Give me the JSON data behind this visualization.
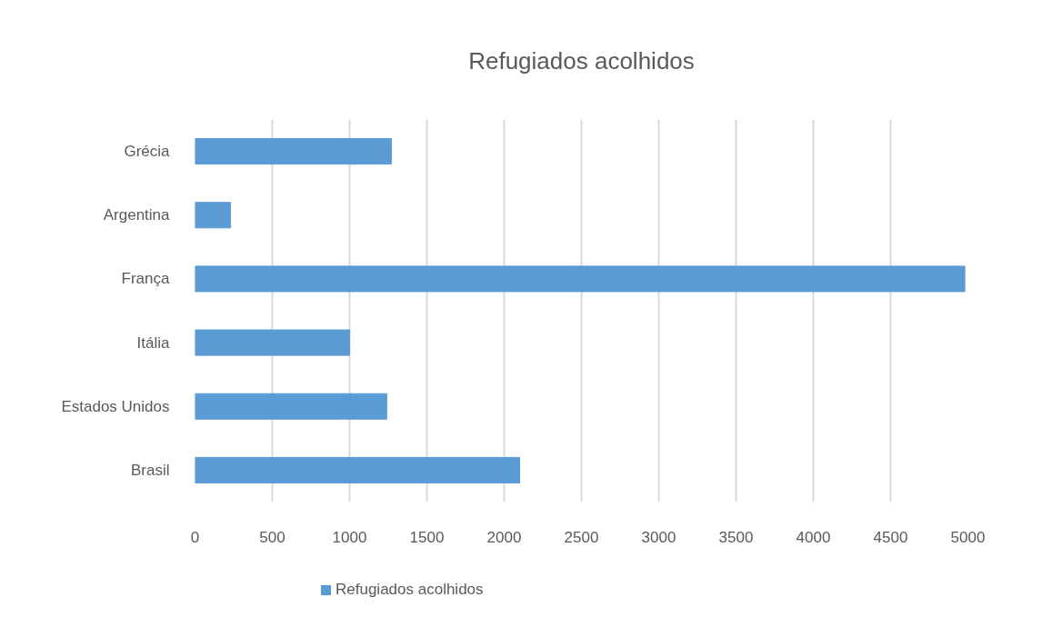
{
  "chart_data": {
    "type": "bar",
    "orientation": "horizontal",
    "title": "Refugiados acolhidos",
    "categories": [
      "Grécia",
      "Argentina",
      "França",
      "Itália",
      "Estados Unidos",
      "Brasil"
    ],
    "series": [
      {
        "name": "Refugiados acolhidos",
        "color": "#5b9bd5",
        "values": [
          1270,
          230,
          4980,
          1000,
          1240,
          2100
        ]
      }
    ],
    "xlim": [
      0,
      5000
    ],
    "xticks": [
      0,
      500,
      1000,
      1500,
      2000,
      2500,
      3000,
      3500,
      4000,
      4500,
      5000
    ],
    "grid": "x",
    "legend": "bottom"
  }
}
